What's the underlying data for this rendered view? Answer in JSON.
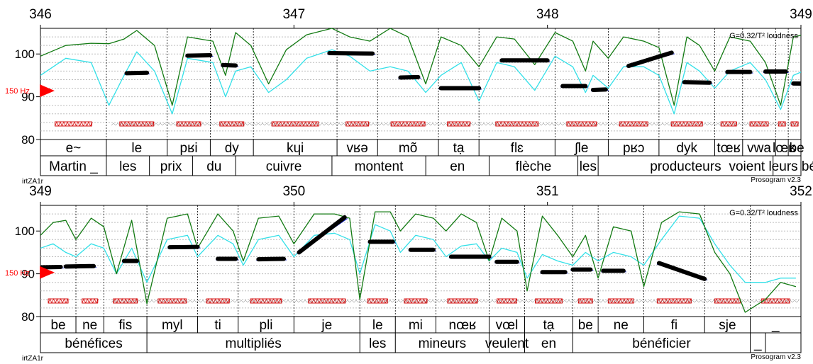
{
  "chart_data": [
    {
      "type": "line",
      "time_range": [
        346,
        349
      ],
      "time_ticks": [
        "346",
        "347",
        "348",
        "349"
      ],
      "ylim": [
        80,
        106
      ],
      "y_ticks": [
        "80",
        "90",
        "100"
      ],
      "gain_label": "G=0.32/T² loudness",
      "freq_marker": "150 Hz",
      "file_label": "irtZA1r",
      "version_label": "Prosogram v2.3",
      "syllable_boundaries": [
        346.0,
        346.26,
        346.5,
        346.67,
        346.84,
        347.17,
        347.33,
        347.57,
        347.73,
        348.03,
        348.24,
        348.44,
        348.66,
        348.77,
        348.9,
        348.95
      ],
      "syllables": [
        "e~",
        "le",
        "pʁi",
        "dy",
        "kɥi",
        "vʁə",
        "mõ",
        "tạ",
        "flɛ",
        "ʃle",
        "pʁɔ",
        "dyk",
        "tœʁ",
        "vwa",
        "lœʁ",
        "be"
      ],
      "word_boundaries": [
        346.0,
        346.26,
        346.43,
        346.6,
        346.77,
        347.15,
        347.52,
        347.77,
        348.12,
        348.2,
        348.89,
        349.1
      ],
      "words": [
        "Martin _",
        "les",
        "prix",
        "du",
        "cuivre",
        "montent",
        "en",
        "flèche",
        "les",
        "producteurs",
        "voient leurs bénéfic"
      ],
      "stylized_pitch": [
        [
          [
            346.34,
            95.5
          ],
          [
            346.42,
            95.6
          ]
        ],
        [
          [
            346.58,
            99.6
          ],
          [
            346.67,
            99.7
          ]
        ],
        [
          [
            346.72,
            97.4
          ],
          [
            346.77,
            97.3
          ]
        ],
        [
          [
            347.14,
            100.2
          ],
          [
            347.31,
            100.1
          ]
        ],
        [
          [
            347.42,
            94.5
          ],
          [
            347.49,
            94.6
          ]
        ],
        [
          [
            347.58,
            92.0
          ],
          [
            347.73,
            92.0
          ]
        ],
        [
          [
            347.82,
            98.5
          ],
          [
            348.0,
            98.5
          ]
        ],
        [
          [
            348.06,
            92.5
          ],
          [
            348.15,
            92.5
          ]
        ],
        [
          [
            348.18,
            91.6
          ],
          [
            348.23,
            91.7
          ]
        ],
        [
          [
            348.32,
            97.2
          ],
          [
            348.49,
            100.3
          ]
        ],
        [
          [
            348.54,
            93.4
          ],
          [
            348.64,
            93.3
          ]
        ],
        [
          [
            348.71,
            95.8
          ],
          [
            348.8,
            95.8
          ]
        ],
        [
          [
            348.86,
            95.9
          ],
          [
            348.94,
            95.9
          ]
        ],
        [
          [
            348.97,
            93.1
          ],
          [
            349.14,
            93.0
          ]
        ],
        [
          [
            349.2,
            91.0
          ],
          [
            349.28,
            90.9
          ]
        ],
        [
          [
            349.33,
            89.4
          ],
          [
            349.41,
            89.3
          ]
        ],
        [
          [
            349.45,
            88.9
          ],
          [
            349.52,
            88.8
          ]
        ],
        [
          [
            349.58,
            91.8
          ],
          [
            349.62,
            91.7
          ]
        ]
      ],
      "intensity": [
        [
          346.0,
          99.5
        ],
        [
          346.1,
          102.0
        ],
        [
          346.2,
          102.5
        ],
        [
          346.27,
          102.4
        ],
        [
          346.33,
          103.5
        ],
        [
          346.38,
          105.5
        ],
        [
          346.45,
          102.0
        ],
        [
          346.52,
          88.0
        ],
        [
          346.58,
          104.0
        ],
        [
          346.68,
          103.0
        ],
        [
          346.73,
          95.0
        ],
        [
          346.77,
          105.0
        ],
        [
          346.83,
          102.0
        ],
        [
          346.9,
          93.0
        ],
        [
          346.97,
          101.0
        ],
        [
          347.05,
          104.5
        ],
        [
          347.15,
          106.0
        ],
        [
          347.22,
          104.0
        ],
        [
          347.3,
          103.0
        ],
        [
          347.38,
          106.0
        ],
        [
          347.45,
          104.0
        ],
        [
          347.52,
          93.0
        ],
        [
          347.58,
          104.0
        ],
        [
          347.66,
          102.0
        ],
        [
          347.73,
          97.0
        ],
        [
          347.8,
          104.0
        ],
        [
          347.87,
          103.5
        ],
        [
          347.95,
          97.5
        ],
        [
          348.03,
          105.0
        ],
        [
          348.1,
          103.0
        ],
        [
          348.15,
          96.0
        ],
        [
          348.18,
          103.0
        ],
        [
          348.24,
          99.0
        ],
        [
          348.3,
          104.0
        ],
        [
          348.38,
          103.0
        ],
        [
          348.44,
          101.5
        ],
        [
          348.5,
          88.0
        ],
        [
          348.55,
          104.0
        ],
        [
          348.6,
          102.0
        ],
        [
          348.66,
          96.0
        ],
        [
          348.72,
          104.0
        ],
        [
          348.8,
          103.0
        ],
        [
          348.86,
          98.0
        ],
        [
          348.92,
          88.0
        ],
        [
          348.97,
          104.0
        ],
        [
          349.05,
          105.0
        ],
        [
          349.1,
          102.0
        ],
        [
          349.16,
          99.0
        ],
        [
          349.22,
          103.5
        ],
        [
          349.3,
          102.0
        ],
        [
          349.36,
          96.0
        ],
        [
          349.42,
          103.0
        ],
        [
          349.5,
          102.0
        ],
        [
          349.55,
          96.0
        ],
        [
          349.6,
          104.0
        ],
        [
          349.66,
          97.0
        ]
      ],
      "loudness": [
        [
          346.0,
          95.0
        ],
        [
          346.1,
          99.0
        ],
        [
          346.2,
          98.0
        ],
        [
          346.27,
          88.0
        ],
        [
          346.33,
          95.0
        ],
        [
          346.38,
          100.5
        ],
        [
          346.45,
          96.0
        ],
        [
          346.52,
          86.0
        ],
        [
          346.58,
          99.0
        ],
        [
          346.68,
          98.0
        ],
        [
          346.73,
          90.0
        ],
        [
          346.77,
          96.0
        ],
        [
          346.83,
          97.0
        ],
        [
          346.9,
          91.0
        ],
        [
          346.97,
          94.0
        ],
        [
          347.05,
          99.0
        ],
        [
          347.15,
          101.0
        ],
        [
          347.22,
          99.5
        ],
        [
          347.3,
          96.0
        ],
        [
          347.38,
          97.0
        ],
        [
          347.45,
          96.0
        ],
        [
          347.52,
          91.0
        ],
        [
          347.58,
          95.0
        ],
        [
          347.66,
          98.0
        ],
        [
          347.73,
          89.0
        ],
        [
          347.8,
          98.0
        ],
        [
          347.87,
          97.0
        ],
        [
          347.95,
          91.5
        ],
        [
          348.03,
          99.5
        ],
        [
          348.1,
          97.0
        ],
        [
          348.15,
          91.0
        ],
        [
          348.18,
          95.0
        ],
        [
          348.24,
          92.0
        ],
        [
          348.3,
          97.0
        ],
        [
          348.38,
          97.0
        ],
        [
          348.44,
          95.0
        ],
        [
          348.5,
          86.0
        ],
        [
          348.55,
          98.0
        ],
        [
          348.6,
          96.0
        ],
        [
          348.66,
          92.0
        ],
        [
          348.72,
          96.0
        ],
        [
          348.8,
          98.0
        ],
        [
          348.86,
          94.0
        ],
        [
          348.92,
          87.0
        ],
        [
          348.97,
          95.0
        ],
        [
          349.05,
          97.0
        ],
        [
          349.1,
          96.0
        ],
        [
          349.16,
          91.0
        ],
        [
          349.22,
          94.0
        ],
        [
          349.3,
          96.0
        ],
        [
          349.36,
          92.0
        ],
        [
          349.42,
          96.0
        ],
        [
          349.5,
          94.0
        ],
        [
          349.55,
          91.0
        ],
        [
          349.6,
          96.0
        ],
        [
          349.66,
          92.0
        ]
      ]
    },
    {
      "type": "line",
      "time_range": [
        349,
        352
      ],
      "time_ticks": [
        "349",
        "350",
        "351",
        "352"
      ],
      "ylim": [
        80,
        106
      ],
      "y_ticks": [
        "80",
        "90",
        "100"
      ],
      "gain_label": "G=0.32/T² loudness",
      "freq_marker": "150 Hz",
      "file_label": "irtZA1r",
      "version_label": "Prosogram v2.3",
      "syllable_boundaries": [
        349.0,
        349.14,
        349.25,
        349.42,
        349.62,
        349.78,
        350.0,
        350.26,
        350.4,
        350.56,
        350.77,
        350.91,
        351.1,
        351.2,
        351.38,
        351.62,
        351.8
      ],
      "syllables": [
        "be",
        "ne",
        "fis",
        "myl",
        "ti",
        "pli",
        "je",
        "le",
        "mi",
        "nœʁ",
        "vœl",
        "tạ",
        "be",
        "ne",
        "fi",
        "sje",
        "_"
      ],
      "word_boundaries": [
        349.0,
        349.42,
        350.26,
        350.4,
        350.77,
        350.91,
        351.1,
        351.8,
        351.86
      ],
      "words": [
        "bénéfices",
        "multipliés",
        "les",
        "mineurs",
        "veulent",
        "en",
        "bénéficier",
        "_"
      ],
      "stylized_pitch": [
        [
          [
            349.0,
            91.5
          ],
          [
            349.08,
            91.6
          ]
        ],
        [
          [
            349.1,
            91.7
          ],
          [
            349.21,
            91.8
          ]
        ],
        [
          [
            349.33,
            93.0
          ],
          [
            349.38,
            93.0
          ]
        ],
        [
          [
            349.51,
            96.2
          ],
          [
            349.62,
            96.3
          ]
        ],
        [
          [
            349.7,
            93.5
          ],
          [
            349.77,
            93.5
          ]
        ],
        [
          [
            349.86,
            93.4
          ],
          [
            349.96,
            93.5
          ]
        ],
        [
          [
            350.02,
            95.0
          ],
          [
            350.2,
            103.2
          ]
        ],
        [
          [
            350.3,
            97.5
          ],
          [
            350.39,
            97.5
          ]
        ],
        [
          [
            350.46,
            95.6
          ],
          [
            350.55,
            95.6
          ]
        ],
        [
          [
            350.62,
            94.0
          ],
          [
            350.77,
            94.0
          ]
        ],
        [
          [
            350.8,
            92.8
          ],
          [
            350.88,
            92.8
          ]
        ],
        [
          [
            350.98,
            90.4
          ],
          [
            351.07,
            90.4
          ]
        ],
        [
          [
            351.1,
            91.0
          ],
          [
            351.17,
            91.0
          ]
        ],
        [
          [
            351.22,
            90.7
          ],
          [
            351.3,
            90.7
          ]
        ],
        [
          [
            351.44,
            92.5
          ],
          [
            351.62,
            88.8
          ]
        ]
      ],
      "intensity": [
        [
          349.0,
          99.0
        ],
        [
          349.05,
          102.0
        ],
        [
          349.1,
          102.5
        ],
        [
          349.14,
          98.0
        ],
        [
          349.2,
          103.0
        ],
        [
          349.25,
          101.0
        ],
        [
          349.3,
          90.0
        ],
        [
          349.36,
          102.5
        ],
        [
          349.42,
          83.0
        ],
        [
          349.5,
          103.0
        ],
        [
          349.58,
          104.0
        ],
        [
          349.62,
          96.0
        ],
        [
          349.7,
          104.0
        ],
        [
          349.76,
          100.0
        ],
        [
          349.8,
          93.0
        ],
        [
          349.86,
          103.0
        ],
        [
          349.94,
          103.5
        ],
        [
          350.0,
          97.0
        ],
        [
          350.08,
          104.0
        ],
        [
          350.16,
          104.0
        ],
        [
          350.22,
          103.0
        ],
        [
          350.26,
          84.0
        ],
        [
          350.32,
          104.5
        ],
        [
          350.38,
          104.5
        ],
        [
          350.42,
          100.0
        ],
        [
          350.48,
          104.0
        ],
        [
          350.55,
          103.0
        ],
        [
          350.6,
          100.0
        ],
        [
          350.66,
          104.0
        ],
        [
          350.72,
          102.0
        ],
        [
          350.77,
          93.0
        ],
        [
          350.82,
          103.0
        ],
        [
          350.88,
          100.0
        ],
        [
          350.92,
          86.0
        ],
        [
          350.98,
          103.5
        ],
        [
          351.04,
          99.0
        ],
        [
          351.1,
          94.0
        ],
        [
          351.15,
          99.0
        ],
        [
          351.2,
          89.0
        ],
        [
          351.26,
          101.0
        ],
        [
          351.33,
          100.0
        ],
        [
          351.38,
          87.0
        ],
        [
          351.45,
          102.0
        ],
        [
          351.52,
          104.5
        ],
        [
          351.6,
          104.0
        ],
        [
          351.66,
          95.0
        ],
        [
          351.72,
          90.0
        ],
        [
          351.78,
          81.0
        ],
        [
          351.86,
          84.0
        ],
        [
          351.92,
          88.0
        ],
        [
          351.98,
          87.0
        ]
      ],
      "loudness": [
        [
          349.0,
          96.0
        ],
        [
          349.05,
          97.0
        ],
        [
          349.1,
          95.0
        ],
        [
          349.14,
          94.0
        ],
        [
          349.2,
          97.0
        ],
        [
          349.25,
          96.0
        ],
        [
          349.3,
          90.0
        ],
        [
          349.36,
          96.0
        ],
        [
          349.42,
          88.0
        ],
        [
          349.5,
          98.0
        ],
        [
          349.58,
          99.0
        ],
        [
          349.62,
          94.0
        ],
        [
          349.7,
          99.0
        ],
        [
          349.76,
          97.0
        ],
        [
          349.8,
          92.0
        ],
        [
          349.86,
          98.0
        ],
        [
          349.94,
          99.0
        ],
        [
          350.0,
          94.0
        ],
        [
          350.08,
          99.0
        ],
        [
          350.16,
          99.5
        ],
        [
          350.22,
          98.0
        ],
        [
          350.26,
          90.0
        ],
        [
          350.32,
          101.5
        ],
        [
          350.38,
          100.0
        ],
        [
          350.42,
          95.0
        ],
        [
          350.48,
          99.0
        ],
        [
          350.55,
          98.0
        ],
        [
          350.6,
          94.0
        ],
        [
          350.66,
          96.5
        ],
        [
          350.72,
          97.0
        ],
        [
          350.77,
          93.0
        ],
        [
          350.82,
          96.0
        ],
        [
          350.88,
          95.0
        ],
        [
          350.92,
          89.0
        ],
        [
          350.98,
          94.5
        ],
        [
          351.04,
          93.0
        ],
        [
          351.1,
          92.0
        ],
        [
          351.15,
          95.0
        ],
        [
          351.2,
          93.0
        ],
        [
          351.26,
          95.0
        ],
        [
          351.33,
          94.0
        ],
        [
          351.38,
          92.0
        ],
        [
          351.45,
          98.0
        ],
        [
          351.52,
          103.5
        ],
        [
          351.6,
          103.0
        ],
        [
          351.66,
          97.0
        ],
        [
          351.72,
          92.0
        ],
        [
          351.78,
          88.0
        ],
        [
          351.86,
          88.0
        ],
        [
          351.92,
          89.0
        ],
        [
          351.98,
          89.0
        ]
      ]
    }
  ]
}
